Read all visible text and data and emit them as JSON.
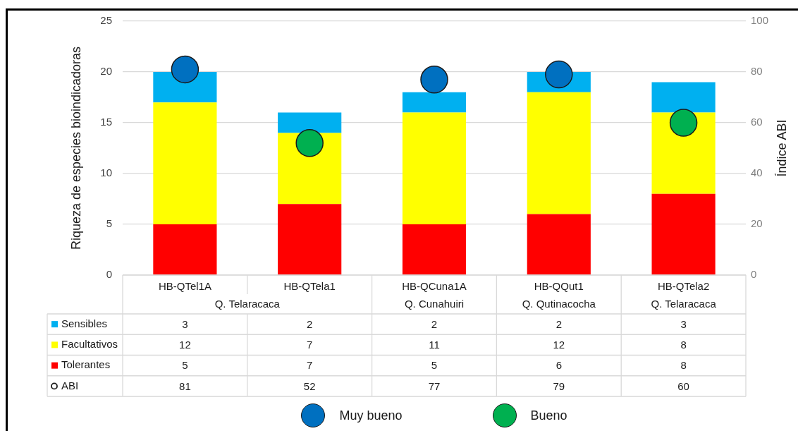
{
  "chart_data": {
    "type": "bar",
    "stacked": true,
    "categories": [
      "HB-QTel1A",
      "HB-QTela1",
      "HB-QCuna1A",
      "HB-QQut1",
      "HB-QTela2"
    ],
    "series": [
      {
        "name": "Tolerantes",
        "color": "#ff0000",
        "values": [
          5,
          7,
          5,
          6,
          8
        ]
      },
      {
        "name": "Facultativos",
        "color": "#ffff00",
        "values": [
          12,
          7,
          11,
          12,
          8
        ]
      },
      {
        "name": "Sensibles",
        "color": "#00b0f0",
        "values": [
          3,
          2,
          2,
          2,
          3
        ]
      },
      {
        "name": "ABI",
        "type": "scatter",
        "axis": "y2",
        "colors": [
          "#0070c0",
          "#00b050",
          "#0070c0",
          "#0070c0",
          "#00b050"
        ],
        "values": [
          81,
          52,
          77,
          79,
          60
        ]
      }
    ],
    "ylabel": "Riqueza de especies bioindicadoras",
    "y2label": "Índice ABI",
    "ylim": [
      0,
      25
    ],
    "yticks": [
      0,
      5,
      10,
      15,
      20,
      25
    ],
    "y2lim": [
      0,
      100
    ],
    "y2ticks": [
      0,
      20,
      40,
      60,
      80,
      100
    ],
    "grid": "y",
    "legend": "bottom",
    "marker": "circle",
    "data_labels": true,
    "annotations": [
      "Q. Telaracaca",
      "Q. Cunahuiri",
      "Q. Qutinacocha",
      "Q. Telaracaca",
      "Muy bueno",
      "Bueno"
    ]
  }
}
